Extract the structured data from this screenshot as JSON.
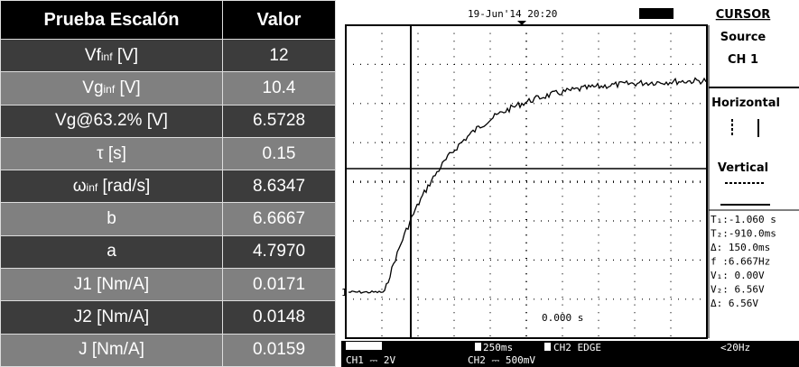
{
  "table": {
    "header": [
      "Prueba Escalón",
      "Valor"
    ],
    "rows": [
      {
        "label": "Vf",
        "sub": "inf",
        "unit": "[V]",
        "value": "12"
      },
      {
        "label": "Vg",
        "sub": "inf",
        "unit": "[V]",
        "value": "10.4"
      },
      {
        "label": "Vg@63.2% [V]",
        "value": "6.5728"
      },
      {
        "label": "τ [s]",
        "value": "0.15"
      },
      {
        "label": "ω",
        "sub": "inf",
        "unit": "[rad/s]",
        "value": "8.6347"
      },
      {
        "label": "b",
        "value": "6.6667"
      },
      {
        "label": "a",
        "value": "4.7970"
      },
      {
        "label": "J1 [Nm/A]",
        "value": "0.0171"
      },
      {
        "label": "J2 [Nm/A]",
        "value": "0.0148"
      },
      {
        "label": "J [Nm/A]",
        "value": "0.0159"
      }
    ]
  },
  "scope": {
    "datetime": "19-Jun'14 20:20",
    "menu_title": "CURSOR",
    "menu": [
      "Source",
      "CH 1",
      "Horizontal",
      "Vertical"
    ],
    "readings": [
      "T₁:-1.060 s",
      "T₂:-910.0ms",
      "Δ: 150.0ms",
      "f :6.667Hz",
      "V₁: 0.00V",
      "V₂: 6.56V",
      "Δ: 6.56V"
    ],
    "trigger_time": "0.000 s",
    "channel_marker": "1",
    "timebase": "250ms",
    "trigger": "CH2 EDGE",
    "filter": "<20Hz",
    "ch1": "CH1 ⎓ 2V",
    "ch2": "CH2 ⎓ 500mV"
  }
}
